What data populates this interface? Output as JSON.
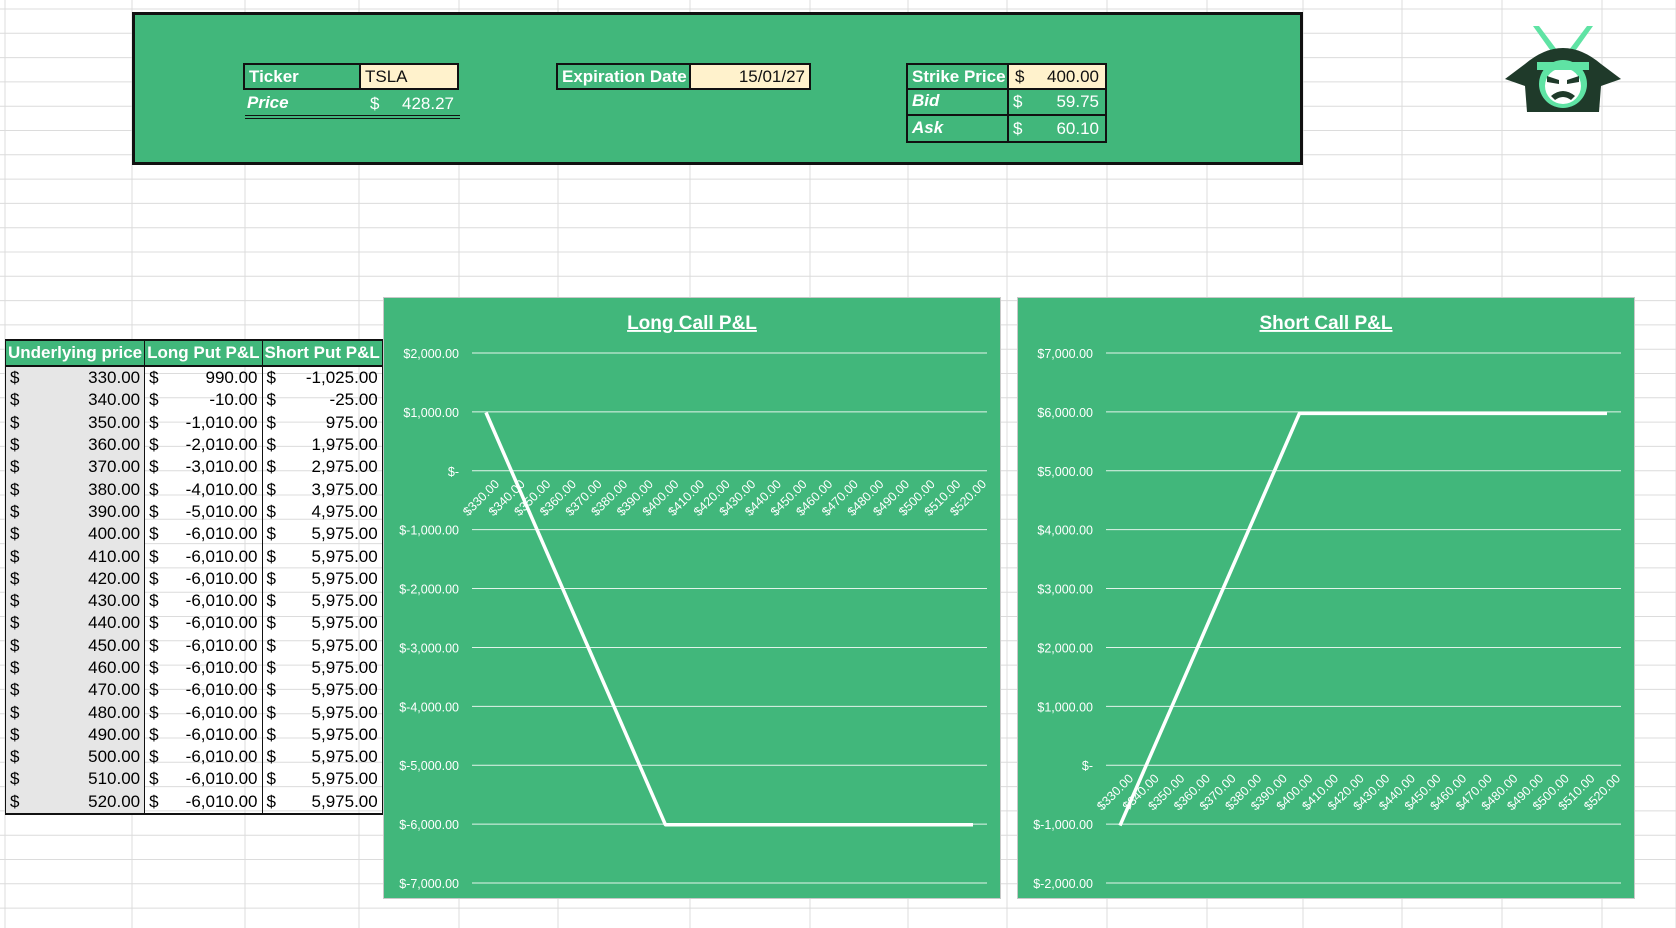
{
  "header": {
    "ticker_label": "Ticker",
    "ticker_value": "TSLA",
    "price_label": "Price",
    "price_currency": "$",
    "price_value": "428.27",
    "expiration_label": "Expiration Date",
    "expiration_value": "15/01/27",
    "strike_label": "Strike Price",
    "strike_currency": "$",
    "strike_value": "400.00",
    "bid_label": "Bid",
    "bid_currency": "$",
    "bid_value": "59.75",
    "ask_label": "Ask",
    "ask_currency": "$",
    "ask_value": "60.10"
  },
  "table": {
    "headers": [
      "Underlying price",
      "Long Put P&L",
      "Short Put P&L"
    ],
    "currency": "$",
    "rows": [
      [
        "330.00",
        "990.00",
        "-1,025.00"
      ],
      [
        "340.00",
        "-10.00",
        "-25.00"
      ],
      [
        "350.00",
        "-1,010.00",
        "975.00"
      ],
      [
        "360.00",
        "-2,010.00",
        "1,975.00"
      ],
      [
        "370.00",
        "-3,010.00",
        "2,975.00"
      ],
      [
        "380.00",
        "-4,010.00",
        "3,975.00"
      ],
      [
        "390.00",
        "-5,010.00",
        "4,975.00"
      ],
      [
        "400.00",
        "-6,010.00",
        "5,975.00"
      ],
      [
        "410.00",
        "-6,010.00",
        "5,975.00"
      ],
      [
        "420.00",
        "-6,010.00",
        "5,975.00"
      ],
      [
        "430.00",
        "-6,010.00",
        "5,975.00"
      ],
      [
        "440.00",
        "-6,010.00",
        "5,975.00"
      ],
      [
        "450.00",
        "-6,010.00",
        "5,975.00"
      ],
      [
        "460.00",
        "-6,010.00",
        "5,975.00"
      ],
      [
        "470.00",
        "-6,010.00",
        "5,975.00"
      ],
      [
        "480.00",
        "-6,010.00",
        "5,975.00"
      ],
      [
        "490.00",
        "-6,010.00",
        "5,975.00"
      ],
      [
        "500.00",
        "-6,010.00",
        "5,975.00"
      ],
      [
        "510.00",
        "-6,010.00",
        "5,975.00"
      ],
      [
        "520.00",
        "-6,010.00",
        "5,975.00"
      ]
    ]
  },
  "colors": {
    "green": "#41b77b",
    "input": "#fff2cc",
    "line": "#ffffff"
  },
  "logo_icon": "samurai-helmet-icon",
  "chart_data": [
    {
      "type": "line",
      "title": "Long Call P&L",
      "categories": [
        "$330.00",
        "$340.00",
        "$350.00",
        "$360.00",
        "$370.00",
        "$380.00",
        "$390.00",
        "$400.00",
        "$410.00",
        "$420.00",
        "$430.00",
        "$440.00",
        "$450.00",
        "$460.00",
        "$470.00",
        "$480.00",
        "$490.00",
        "$500.00",
        "$510.00",
        "$520.00"
      ],
      "values": [
        990,
        -10,
        -1010,
        -2010,
        -3010,
        -4010,
        -5010,
        -6010,
        -6010,
        -6010,
        -6010,
        -6010,
        -6010,
        -6010,
        -6010,
        -6010,
        -6010,
        -6010,
        -6010,
        -6010
      ],
      "y_ticks": [
        2000,
        1000,
        0,
        -1000,
        -2000,
        -3000,
        -4000,
        -5000,
        -6000,
        -7000
      ],
      "y_tick_labels": [
        "$2,000.00",
        "$1,000.00",
        "$-",
        "$-1,000.00",
        "$-2,000.00",
        "$-3,000.00",
        "$-4,000.00",
        "$-5,000.00",
        "$-6,000.00",
        "$-7,000.00"
      ],
      "ylim": [
        -7000,
        2000
      ],
      "grid": true
    },
    {
      "type": "line",
      "title": "Short Call P&L",
      "categories": [
        "$330.00",
        "$340.00",
        "$350.00",
        "$360.00",
        "$370.00",
        "$380.00",
        "$390.00",
        "$400.00",
        "$410.00",
        "$420.00",
        "$430.00",
        "$440.00",
        "$450.00",
        "$460.00",
        "$470.00",
        "$480.00",
        "$490.00",
        "$500.00",
        "$510.00",
        "$520.00"
      ],
      "values": [
        -1025,
        -25,
        975,
        1975,
        2975,
        3975,
        4975,
        5975,
        5975,
        5975,
        5975,
        5975,
        5975,
        5975,
        5975,
        5975,
        5975,
        5975,
        5975,
        5975
      ],
      "y_ticks": [
        7000,
        6000,
        5000,
        4000,
        3000,
        2000,
        1000,
        0,
        -1000,
        -2000
      ],
      "y_tick_labels": [
        "$7,000.00",
        "$6,000.00",
        "$5,000.00",
        "$4,000.00",
        "$3,000.00",
        "$2,000.00",
        "$1,000.00",
        "$-",
        "$-1,000.00",
        "$-2,000.00"
      ],
      "ylim": [
        -2000,
        7000
      ],
      "grid": true
    }
  ]
}
